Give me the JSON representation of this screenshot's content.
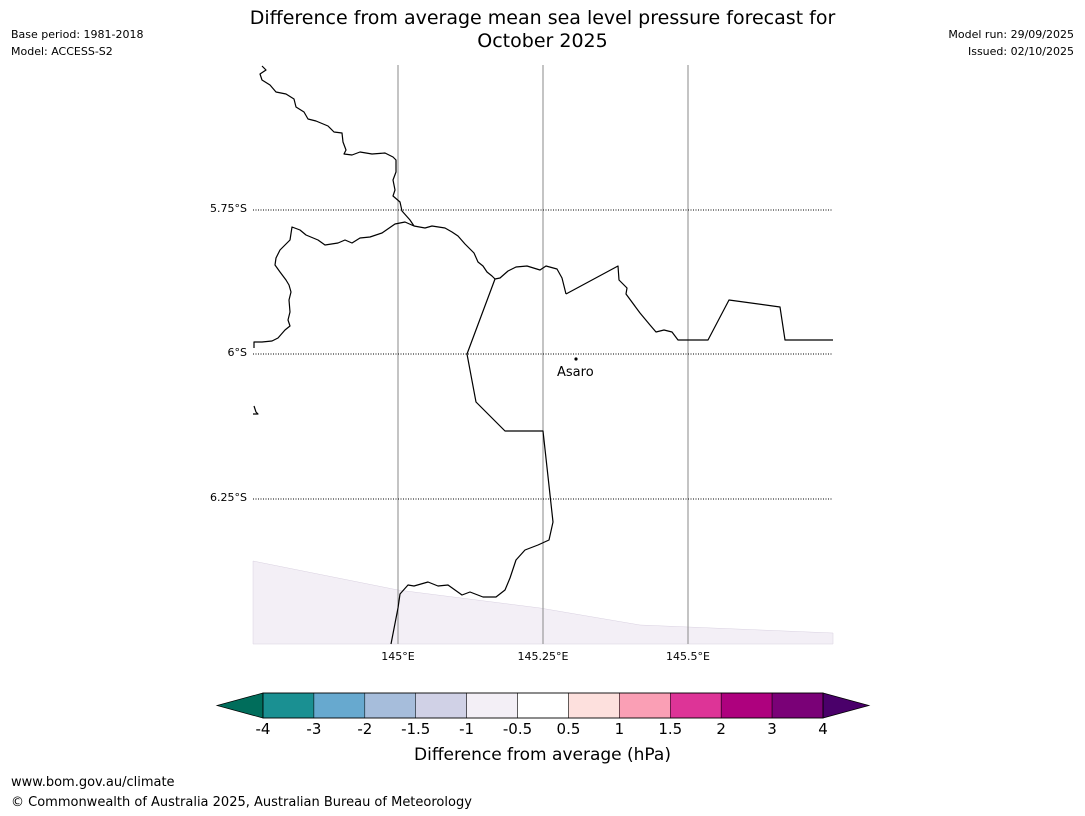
{
  "header": {
    "title_line1": "Difference from average mean sea level pressure forecast for",
    "title_line2": "October 2025",
    "base_period": "Base period: 1981-2018",
    "model": "Model: ACCESS-S2",
    "model_run": "Model run: 29/09/2025",
    "issued": "Issued: 02/10/2025"
  },
  "map": {
    "latitude_labels": [
      "5.75°S",
      "6°S",
      "6.25°S"
    ],
    "longitude_labels": [
      "145°E",
      "145.25°E",
      "145.5°E"
    ],
    "places": [
      {
        "name": "Asaro",
        "lat": -6.01,
        "lon": 145.31
      }
    ],
    "anomaly_fill_color": "#f3eff6",
    "coastline_color": "#000000"
  },
  "colorbar": {
    "label": "Difference from average (hPa)",
    "ticks": [
      "-4",
      "-3",
      "-2",
      "-1.5",
      "-1",
      "-0.5",
      "0.5",
      "1",
      "1.5",
      "2",
      "3",
      "4"
    ],
    "under_color": "#006d5b",
    "over_color": "#4a006a",
    "colors": [
      "#1a9092",
      "#67a9cf",
      "#a6bddb",
      "#d0d1e6",
      "#f3eff6",
      "#ffffff",
      "#fde0dd",
      "#fa9fb5",
      "#dd3497",
      "#ae017e",
      "#7a0177"
    ]
  },
  "footer": {
    "url": "www.bom.gov.au/climate",
    "copyright": "© Commonwealth of Australia 2025, Australian Bureau of Meteorology"
  }
}
